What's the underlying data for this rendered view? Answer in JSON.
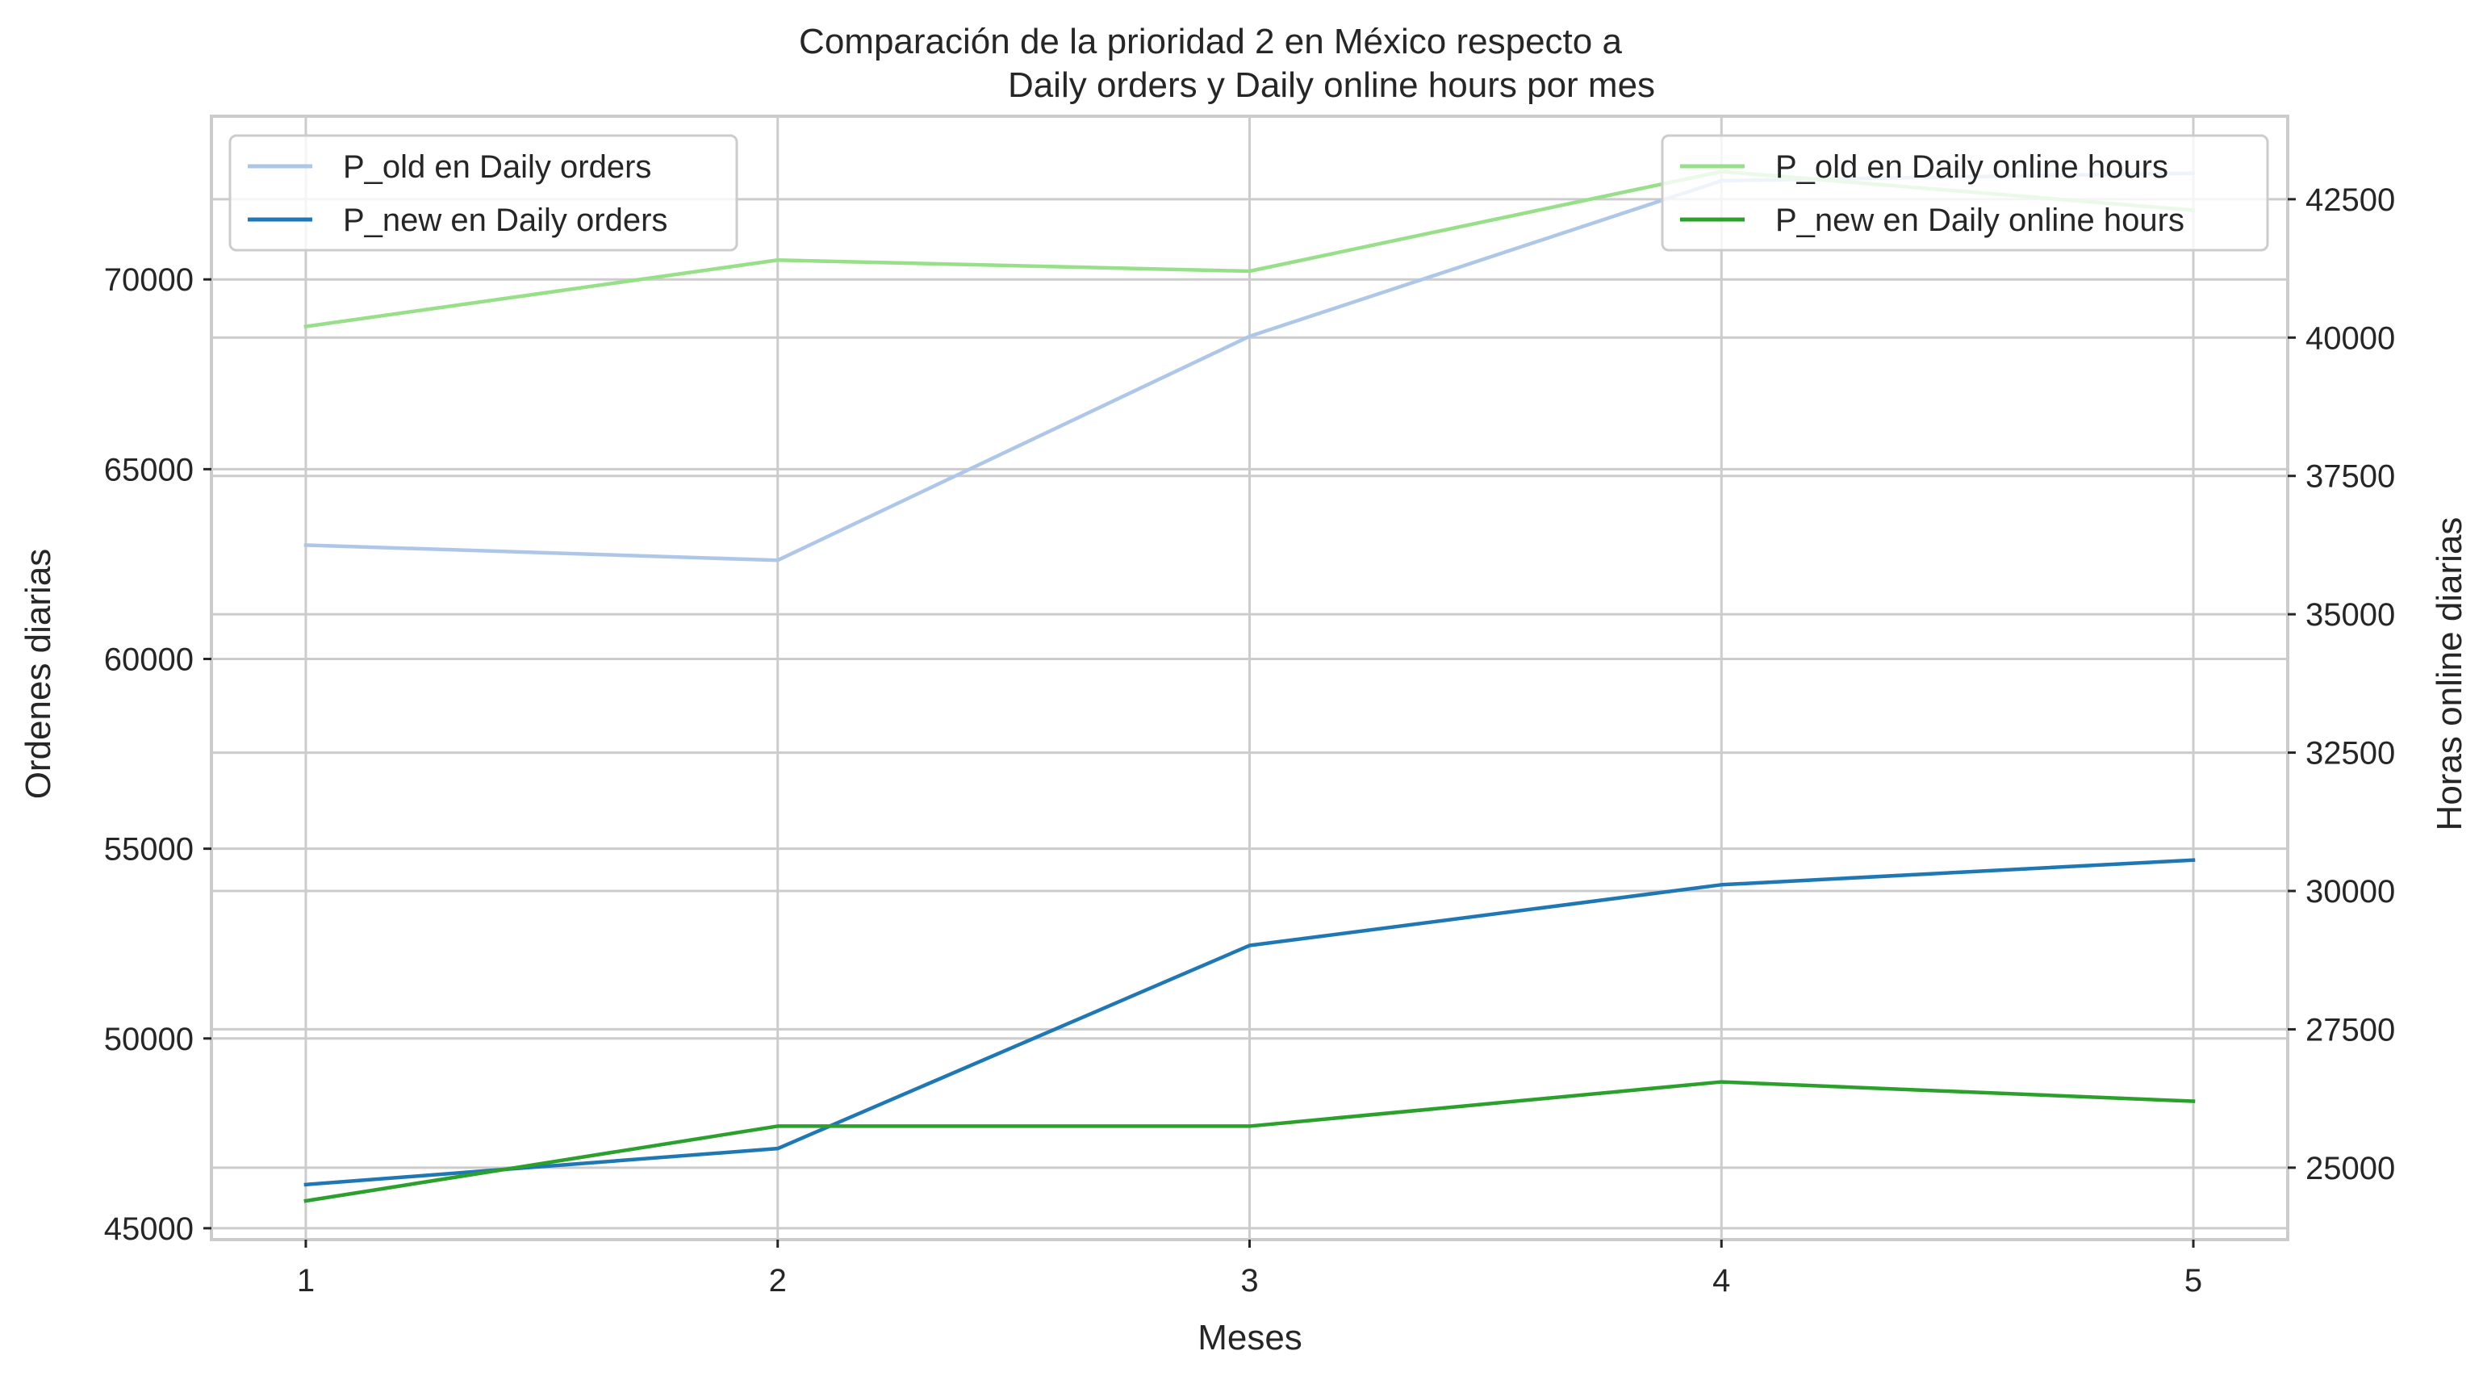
{
  "chart_data": {
    "type": "line",
    "title_line1": "Comparación de la prioridad 2 en México respecto a",
    "title_line2": "Daily orders y Daily online hours por mes",
    "xlabel": "Meses",
    "ylabel_left": "Ordenes diarias",
    "ylabel_right": "Horas online diarias",
    "x": [
      1,
      2,
      3,
      4,
      5
    ],
    "xlim": [
      0.8,
      5.2
    ],
    "ylim_left": [
      44700,
      74300
    ],
    "ylim_right": [
      23700,
      44000
    ],
    "yticks_left": [
      45000,
      50000,
      55000,
      60000,
      65000,
      70000
    ],
    "yticks_right": [
      25000,
      27500,
      30000,
      32500,
      35000,
      37500,
      40000,
      42500
    ],
    "grid": true,
    "legend_left_placement": "top-left",
    "legend_right_placement": "top-right",
    "series_left": [
      {
        "name": "P_old en Daily orders",
        "color": "#aec7e8",
        "values": [
          63000,
          62600,
          68500,
          72600,
          72800
        ]
      },
      {
        "name": "P_new en Daily orders",
        "color": "#1f77b4",
        "values": [
          46150,
          47100,
          52450,
          54050,
          54700
        ]
      }
    ],
    "series_right": [
      {
        "name": "P_old en Daily online hours",
        "color": "#98df8a",
        "values": [
          40200,
          41400,
          41200,
          43000,
          42300
        ]
      },
      {
        "name": "P_new en Daily online hours",
        "color": "#2ca02c",
        "values": [
          24400,
          25750,
          25750,
          26550,
          26200
        ]
      }
    ]
  }
}
